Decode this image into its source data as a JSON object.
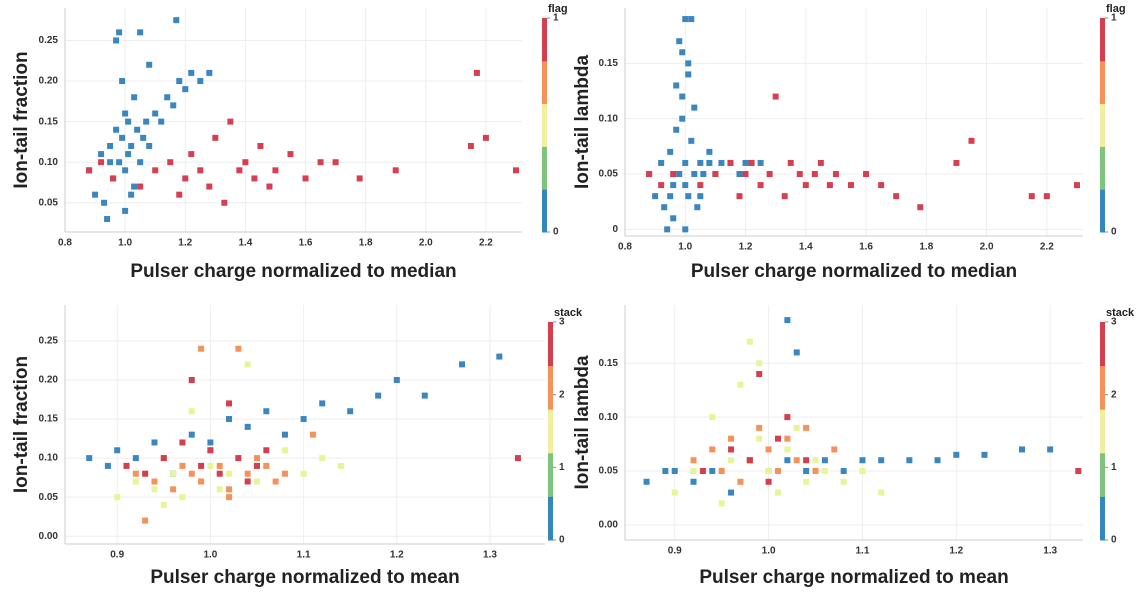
{
  "chart_data": [
    {
      "type": "scatter",
      "x_label": "Pulser charge normalized to median",
      "y_label": "Ion-tail fraction",
      "xlim": [
        0.8,
        2.32
      ],
      "ylim": [
        0.014,
        0.29
      ],
      "xticks": [
        0.8,
        {
          "value": 1,
          "label": "1.0"
        },
        1.2,
        1.4,
        1.6,
        1.8,
        {
          "value": 2,
          "label": "2.0"
        },
        2.2
      ],
      "yticks": [
        0.05,
        {
          "value": 0.1,
          "label": "0.10"
        },
        0.15,
        {
          "value": 0.2,
          "label": "0.20"
        },
        0.25
      ],
      "grid": true,
      "colorbar": {
        "title": "flag",
        "ticks": [
          0,
          1
        ],
        "colors": [
          "#3288bd",
          "#7fc47d",
          "#f2f0a0",
          "#f4925a",
          "#d53e4f"
        ]
      },
      "series": [
        {
          "color": "#3a86c0",
          "x": [
            0.88,
            0.9,
            0.92,
            0.93,
            0.95,
            0.96,
            0.97,
            0.98,
            0.99,
            1.0,
            1.0,
            1.01,
            1.02,
            1.03,
            1.04,
            1.05,
            1.06,
            1.07,
            1.08,
            1.1,
            1.12,
            1.14,
            1.16,
            1.18,
            1.2,
            1.22,
            1.25,
            1.28,
            0.94,
            0.97,
            1.0,
            1.02,
            1.05,
            0.99,
            1.01,
            0.95,
            1.03,
            1.08,
            1.17,
            0.98
          ],
          "values": [
            0.09,
            0.06,
            0.11,
            0.05,
            0.12,
            0.08,
            0.14,
            0.1,
            0.13,
            0.09,
            0.16,
            0.11,
            0.12,
            0.07,
            0.14,
            0.26,
            0.13,
            0.15,
            0.12,
            0.16,
            0.15,
            0.18,
            0.17,
            0.2,
            0.19,
            0.21,
            0.2,
            0.21,
            0.03,
            0.25,
            0.04,
            0.06,
            0.1,
            0.2,
            0.15,
            0.1,
            0.18,
            0.22,
            0.275,
            0.26
          ]
        },
        {
          "color": "#d63f52",
          "x": [
            0.88,
            0.92,
            0.96,
            1.05,
            1.1,
            1.15,
            1.18,
            1.2,
            1.22,
            1.25,
            1.28,
            1.3,
            1.33,
            1.35,
            1.38,
            1.4,
            1.43,
            1.45,
            1.48,
            1.5,
            1.55,
            1.6,
            1.65,
            1.7,
            1.78,
            1.9,
            2.17,
            2.15,
            2.2,
            2.3
          ],
          "values": [
            0.09,
            0.1,
            0.08,
            0.07,
            0.09,
            0.1,
            0.06,
            0.08,
            0.11,
            0.09,
            0.07,
            0.13,
            0.05,
            0.15,
            0.09,
            0.1,
            0.08,
            0.12,
            0.07,
            0.09,
            0.11,
            0.08,
            0.1,
            0.1,
            0.08,
            0.09,
            0.21,
            0.12,
            0.13,
            0.09
          ]
        }
      ]
    },
    {
      "type": "scatter",
      "x_label": "Pulser charge normalized to median",
      "y_label": "Ion-tail lambda",
      "xlim": [
        0.8,
        2.32
      ],
      "ylim": [
        -0.006,
        0.2
      ],
      "xticks": [
        0.8,
        {
          "value": 1,
          "label": "1.0"
        },
        1.2,
        1.4,
        1.6,
        1.8,
        {
          "value": 2,
          "label": "2.0"
        },
        2.2
      ],
      "yticks": [
        0,
        0.05,
        {
          "value": 0.1,
          "label": "0.10"
        },
        0.15
      ],
      "grid": true,
      "colorbar": {
        "title": "flag",
        "ticks": [
          0,
          1
        ],
        "colors": [
          "#3288bd",
          "#7fc47d",
          "#f2f0a0",
          "#f4925a",
          "#d53e4f"
        ]
      },
      "series": [
        {
          "color": "#3a86c0",
          "x": [
            0.88,
            0.9,
            0.92,
            0.93,
            0.95,
            0.96,
            0.97,
            0.98,
            0.99,
            1.0,
            1.0,
            1.01,
            1.02,
            1.03,
            1.04,
            1.05,
            1.06,
            1.08,
            1.1,
            1.12,
            1.15,
            1.18,
            1.2,
            1.22,
            1.25,
            0.97,
            0.98,
            0.99,
            1.0,
            1.01,
            1.02,
            1.03,
            0.94,
            0.96,
            1.0,
            1.05,
            0.99,
            1.01,
            0.95,
            1.08
          ],
          "values": [
            0.05,
            0.03,
            0.06,
            0.02,
            0.07,
            0.04,
            0.09,
            0.05,
            0.1,
            0.04,
            0.06,
            0.03,
            0.08,
            0.05,
            0.02,
            0.06,
            0.05,
            0.06,
            0.05,
            0.06,
            0.06,
            0.05,
            0.06,
            0.06,
            0.06,
            0.13,
            0.17,
            0.16,
            0.19,
            0.15,
            0.19,
            0.11,
            0.0,
            0.01,
            0.0,
            0.03,
            0.12,
            0.14,
            0.03,
            0.07
          ]
        },
        {
          "color": "#d63f52",
          "x": [
            0.88,
            0.92,
            0.96,
            1.05,
            1.1,
            1.15,
            1.18,
            1.2,
            1.22,
            1.25,
            1.28,
            1.3,
            1.33,
            1.35,
            1.38,
            1.4,
            1.43,
            1.45,
            1.48,
            1.5,
            1.55,
            1.6,
            1.65,
            1.7,
            1.78,
            1.9,
            1.95,
            2.15,
            2.2,
            2.3
          ],
          "values": [
            0.05,
            0.04,
            0.05,
            0.04,
            0.05,
            0.06,
            0.03,
            0.05,
            0.06,
            0.04,
            0.05,
            0.12,
            0.03,
            0.06,
            0.05,
            0.04,
            0.05,
            0.06,
            0.04,
            0.05,
            0.04,
            0.05,
            0.04,
            0.03,
            0.02,
            0.06,
            0.08,
            0.03,
            0.03,
            0.04
          ]
        }
      ]
    },
    {
      "type": "scatter",
      "x_label": "Pulser charge normalized to mean",
      "y_label": "Ion-tail fraction",
      "xlim": [
        0.844,
        1.359
      ],
      "ylim": [
        -0.01,
        0.296
      ],
      "xticks": [
        0.9,
        {
          "value": 1,
          "label": "1.0"
        },
        1.1,
        1.2,
        1.3
      ],
      "yticks": [
        {
          "value": 0,
          "label": "0.00"
        },
        0.05,
        {
          "value": 0.1,
          "label": "0.10"
        },
        0.15,
        {
          "value": 0.2,
          "label": "0.20"
        },
        0.25
      ],
      "grid": true,
      "colorbar": {
        "title": "stack",
        "ticks": [
          0,
          1,
          2,
          3
        ],
        "colors": [
          "#3288bd",
          "#7fc47d",
          "#f2f0a0",
          "#f4925a",
          "#d53e4f"
        ]
      },
      "series": [
        {
          "color": "#3a86c0",
          "x": [
            0.87,
            0.89,
            0.9,
            0.92,
            0.94,
            0.96,
            0.98,
            1.0,
            1.02,
            1.04,
            1.06,
            1.08,
            1.1,
            1.12,
            1.15,
            1.18,
            1.2,
            1.23,
            1.27,
            1.31
          ],
          "values": [
            0.1,
            0.09,
            0.11,
            0.1,
            0.12,
            0.08,
            0.13,
            0.12,
            0.15,
            0.14,
            0.16,
            0.13,
            0.15,
            0.17,
            0.16,
            0.18,
            0.2,
            0.18,
            0.22,
            0.23
          ]
        },
        {
          "color": "#e6f598",
          "x": [
            0.9,
            0.92,
            0.94,
            0.95,
            0.96,
            0.97,
            0.98,
            0.99,
            1.0,
            1.01,
            1.02,
            1.03,
            1.04,
            1.05,
            1.06,
            1.08,
            1.1,
            1.12,
            1.14,
            0.93
          ],
          "values": [
            0.05,
            0.07,
            0.06,
            0.04,
            0.08,
            0.05,
            0.16,
            0.07,
            0.09,
            0.06,
            0.08,
            0.1,
            0.22,
            0.07,
            0.09,
            0.11,
            0.08,
            0.1,
            0.09,
            0.08
          ]
        },
        {
          "color": "#f4925a",
          "x": [
            0.92,
            0.94,
            0.95,
            0.96,
            0.97,
            0.98,
            0.99,
            1.0,
            1.01,
            1.02,
            1.03,
            1.04,
            1.05,
            1.06,
            1.07,
            1.08,
            1.11,
            0.93,
            0.99,
            1.02
          ],
          "values": [
            0.08,
            0.07,
            0.1,
            0.06,
            0.09,
            0.08,
            0.07,
            0.11,
            0.09,
            0.06,
            0.24,
            0.08,
            0.1,
            0.09,
            0.07,
            0.08,
            0.13,
            0.02,
            0.24,
            0.05
          ]
        },
        {
          "color": "#d53e4f",
          "x": [
            0.91,
            0.93,
            0.95,
            0.97,
            0.98,
            0.99,
            1.0,
            1.01,
            1.02,
            1.03,
            1.04,
            1.05,
            1.06,
            1.33
          ],
          "values": [
            0.09,
            0.08,
            0.1,
            0.12,
            0.2,
            0.09,
            0.11,
            0.08,
            0.17,
            0.1,
            0.07,
            0.09,
            0.11,
            0.1
          ]
        }
      ]
    },
    {
      "type": "scatter",
      "x_label": "Pulser charge normalized to mean",
      "y_label": "Ion-tail lambda",
      "xlim": [
        0.847,
        1.335
      ],
      "ylim": [
        -0.014,
        0.204
      ],
      "xticks": [
        0.9,
        {
          "value": 1,
          "label": "1.0"
        },
        1.1,
        1.2,
        1.3
      ],
      "yticks": [
        {
          "value": 0,
          "label": "0.00"
        },
        0.05,
        {
          "value": 0.1,
          "label": "0.10"
        },
        0.15
      ],
      "grid": true,
      "colorbar": {
        "title": "stack",
        "ticks": [
          0,
          1,
          2,
          3
        ],
        "colors": [
          "#3288bd",
          "#7fc47d",
          "#f2f0a0",
          "#f4925a",
          "#d53e4f"
        ]
      },
      "series": [
        {
          "color": "#3a86c0",
          "x": [
            0.87,
            0.89,
            0.9,
            0.92,
            0.94,
            0.96,
            0.98,
            1.0,
            1.02,
            1.04,
            1.06,
            1.08,
            1.1,
            1.12,
            1.15,
            1.18,
            1.2,
            1.23,
            1.27,
            1.3,
            1.02,
            1.03
          ],
          "values": [
            0.04,
            0.05,
            0.05,
            0.04,
            0.05,
            0.03,
            0.06,
            0.05,
            0.06,
            0.05,
            0.06,
            0.05,
            0.06,
            0.06,
            0.06,
            0.06,
            0.065,
            0.065,
            0.07,
            0.07,
            0.19,
            0.16
          ]
        },
        {
          "color": "#e6f598",
          "x": [
            0.9,
            0.92,
            0.94,
            0.95,
            0.96,
            0.97,
            0.98,
            0.99,
            1.0,
            1.01,
            1.02,
            1.03,
            1.04,
            1.05,
            1.06,
            1.08,
            1.1,
            1.12,
            0.99,
            0.97
          ],
          "values": [
            0.03,
            0.05,
            0.1,
            0.02,
            0.06,
            0.04,
            0.17,
            0.08,
            0.05,
            0.03,
            0.07,
            0.09,
            0.04,
            0.06,
            0.05,
            0.04,
            0.05,
            0.03,
            0.15,
            0.13
          ]
        },
        {
          "color": "#f4925a",
          "x": [
            0.92,
            0.94,
            0.95,
            0.96,
            0.97,
            0.98,
            0.99,
            1.0,
            1.01,
            1.02,
            1.03,
            1.04,
            1.05,
            1.07
          ],
          "values": [
            0.06,
            0.07,
            0.05,
            0.08,
            0.04,
            0.06,
            0.09,
            0.07,
            0.05,
            0.08,
            0.06,
            0.09,
            0.05,
            0.07
          ]
        },
        {
          "color": "#d53e4f",
          "x": [
            0.93,
            0.96,
            0.98,
            0.99,
            1.0,
            1.01,
            1.02,
            1.04,
            1.33
          ],
          "values": [
            0.05,
            0.07,
            0.06,
            0.14,
            0.04,
            0.08,
            0.1,
            0.06,
            0.05
          ]
        }
      ]
    }
  ]
}
